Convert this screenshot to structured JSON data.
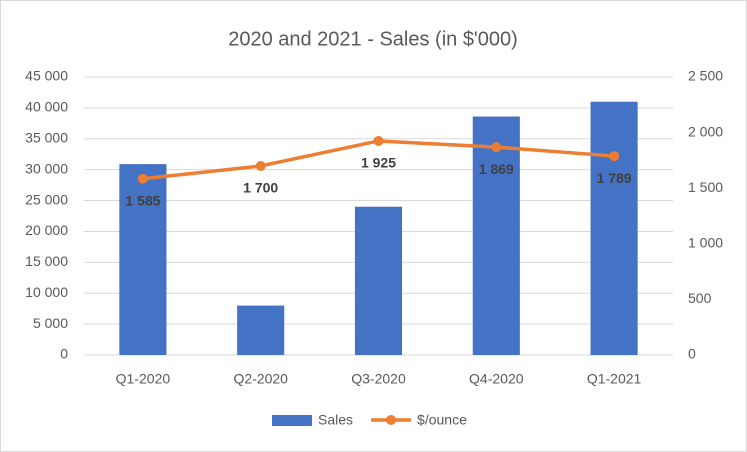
{
  "chart_data": {
    "type": "combo",
    "title": "2020 and 2021 - Sales (in $'000)",
    "categories": [
      "Q1-2020",
      "Q2-2020",
      "Q3-2020",
      "Q4-2020",
      "Q1-2021"
    ],
    "series": [
      {
        "name": "Sales",
        "type": "bar",
        "color": "#4472c4",
        "values": [
          30900,
          8000,
          24000,
          38600,
          41000
        ]
      },
      {
        "name": "$/ounce",
        "type": "line",
        "axis": "y2",
        "color": "#ed7d31",
        "values": [
          1585,
          1700,
          1925,
          1869,
          1789
        ],
        "value_labels": [
          "1 585",
          "1 700",
          "1 925",
          "1 869",
          "1 789"
        ]
      }
    ],
    "ylim": [
      0,
      45000
    ],
    "yticks": [
      0,
      {
        "value": 5000,
        "label": "5 000"
      },
      {
        "value": 10000,
        "label": "10 000"
      },
      {
        "value": 15000,
        "label": "15 000"
      },
      {
        "value": 20000,
        "label": "20 000"
      },
      {
        "value": 25000,
        "label": "25 000"
      },
      {
        "value": 30000,
        "label": "30 000"
      },
      {
        "value": 35000,
        "label": "35 000"
      },
      {
        "value": 40000,
        "label": "40 000"
      },
      {
        "value": 45000,
        "label": "45 000"
      }
    ],
    "y2lim": [
      0,
      2500
    ],
    "y2ticks": [
      0,
      {
        "value": 500,
        "label": "500"
      },
      {
        "value": 1000,
        "label": "1 000"
      },
      {
        "value": 1500,
        "label": "1 500"
      },
      {
        "value": 2000,
        "label": "2 000"
      },
      {
        "value": 2500,
        "label": "2 500"
      }
    ],
    "grid": true,
    "legend": "bottom"
  }
}
